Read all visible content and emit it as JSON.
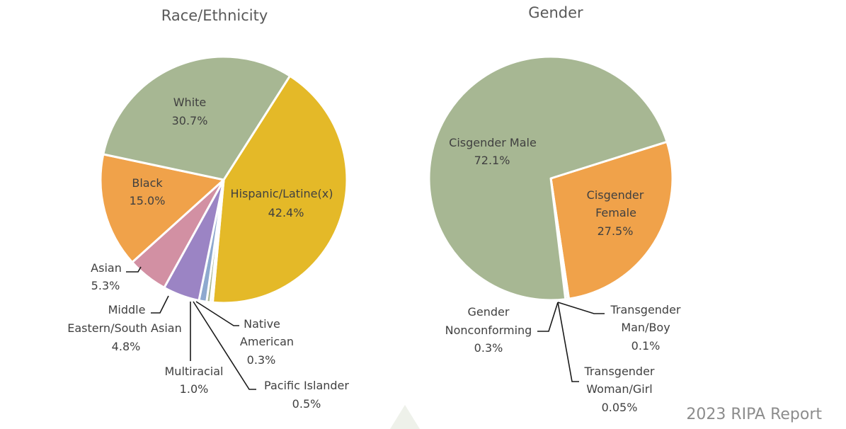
{
  "footer": "2023 RIPA Report",
  "chart_data": [
    {
      "type": "pie",
      "title": "Race/Ethnicity",
      "slices": [
        {
          "label": "Hispanic/Latine(x)",
          "value": 42.4,
          "display": "42.4%",
          "color": "#e4b928"
        },
        {
          "label": "Native American",
          "value": 0.3,
          "display": "0.3%",
          "color": "#a7b793"
        },
        {
          "label": "Pacific Islander",
          "value": 0.5,
          "display": "0.5%",
          "color": "#a7b793"
        },
        {
          "label": "Multiracial",
          "value": 1.0,
          "display": "1.0%",
          "color": "#8ea9cf"
        },
        {
          "label": "Middle Eastern/South Asian",
          "value": 4.8,
          "display": "4.8%",
          "color": "#9b84c4"
        },
        {
          "label": "Asian",
          "value": 5.3,
          "display": "5.3%",
          "color": "#d290a3"
        },
        {
          "label": "Black",
          "value": 15.0,
          "display": "15.0%",
          "color": "#f0a24a"
        },
        {
          "label": "White",
          "value": 30.7,
          "display": "30.7%",
          "color": "#a7b793"
        }
      ]
    },
    {
      "type": "pie",
      "title": "Gender",
      "slices": [
        {
          "label": "Cisgender Female",
          "value": 27.5,
          "display": "27.5%",
          "color": "#f0a24a"
        },
        {
          "label": "Transgender Man/Boy",
          "value": 0.1,
          "display": "0.1%",
          "color": "#a7b793"
        },
        {
          "label": "Transgender Woman/Girl",
          "value": 0.05,
          "display": "0.05%",
          "color": "#a7b793"
        },
        {
          "label": "Gender Nonconforming",
          "value": 0.3,
          "display": "0.3%",
          "color": "#a7b793"
        },
        {
          "label": "Cisgender Male",
          "value": 72.1,
          "display": "72.1%",
          "color": "#a7b793"
        }
      ]
    }
  ]
}
